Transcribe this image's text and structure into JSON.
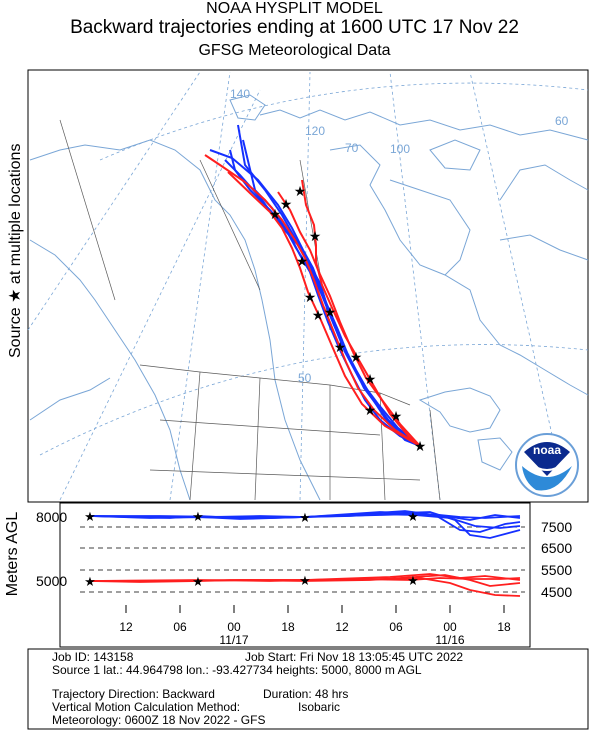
{
  "header": {
    "line1": "NOAA HYSPLIT MODEL",
    "line2": "Backward trajectories ending at 1600 UTC 17 Nov 22",
    "line3": "GFSG Meteorological Data"
  },
  "side_labels": {
    "source": "Source ★ at multiple locations",
    "agl": "Meters AGL"
  },
  "map": {
    "graticule_labels": [
      "140",
      "120",
      "100",
      "70",
      "60",
      "50"
    ],
    "colors": {
      "coast": "#7aa6d6",
      "trajectory_8000": "#1530ff",
      "trajectory_5000": "#ff1f1f",
      "source": "#000000"
    }
  },
  "logo": {
    "text": "noaa"
  },
  "chart_data": [
    {
      "type": "line",
      "title": "Backward trajectories ending at 1600 UTC 17 Nov 22",
      "x_tick_labels": [
        "12",
        "06",
        "00",
        "18",
        "12",
        "06",
        "00",
        "18"
      ],
      "date_labels": [
        "11/17",
        "11/16"
      ],
      "ylabel": "Meters AGL",
      "y_left_labels": [
        "8000",
        "5000"
      ],
      "y_right_labels": [
        "7500",
        "6500",
        "5500",
        "4500"
      ],
      "series": [
        {
          "name": "8000",
          "color": "#1530ff"
        },
        {
          "name": "5000",
          "color": "#ff1f1f"
        }
      ]
    }
  ],
  "info": {
    "job_id": "Job ID: 143158",
    "job_start": "Job Start: Fri Nov 18 13:05:45 UTC 2022",
    "source": "Source 1 lat.: 44.964798  lon.: -93.427734  heights: 5000, 8000 m AGL",
    "direction": "Trajectory Direction: Backward",
    "duration": "Duration: 48 hrs",
    "vertical_label": "Vertical Motion Calculation Method:",
    "vertical_value": "Isobaric",
    "meteorology": "Meteorology: 0600Z 18 Nov 2022 - GFS"
  }
}
